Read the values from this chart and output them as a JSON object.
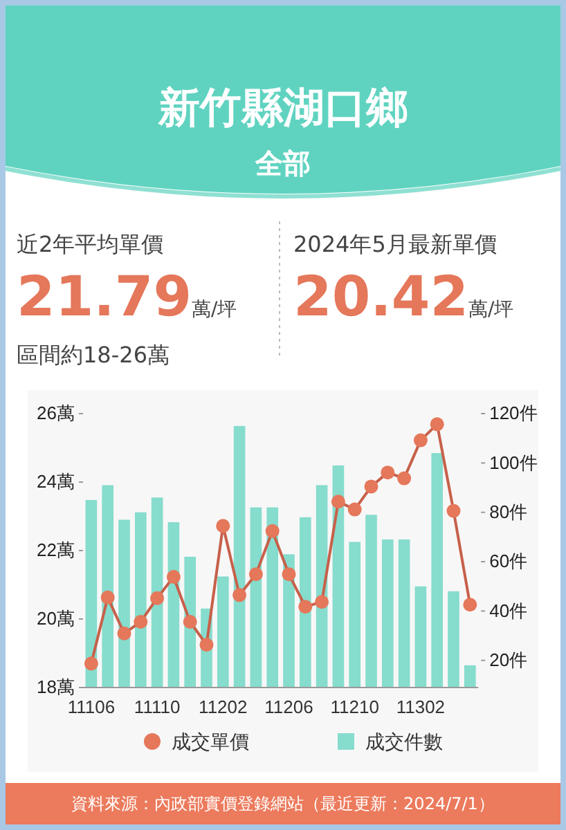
{
  "chart_data": {
    "type": "bar",
    "title": "新竹縣湖口鄉",
    "subtitle": "全部",
    "annotations": [
      "近2年平均單價",
      "21.79萬/坪",
      "區間約18-26萬",
      "2024年5月最新單價",
      "20.42萬/坪",
      "資料來源：內政部實價登錄網站（最近更新：2024/7/1）"
    ],
    "categories": [
      "11106",
      null,
      null,
      null,
      "11110",
      null,
      null,
      null,
      "11202",
      null,
      null,
      null,
      "11206",
      null,
      null,
      null,
      "11210",
      null,
      null,
      null,
      "11302",
      null,
      null,
      null
    ],
    "series": [
      {
        "name": "成交單價",
        "type": "line",
        "color": "#e5775a",
        "marker": "circle",
        "values": [
          18.7,
          20.63,
          19.58,
          19.92,
          20.61,
          21.23,
          19.92,
          19.25,
          22.72,
          20.7,
          21.31,
          22.57,
          21.31,
          20.36,
          20.5,
          23.43,
          23.2,
          23.87,
          24.28,
          24.11,
          25.22,
          25.69,
          23.16,
          20.42
        ]
      },
      {
        "name": "成交件數",
        "axis": "y2",
        "color": "#86dccd",
        "values": [
          85,
          91,
          77,
          80,
          86,
          76,
          62,
          41,
          54,
          115,
          82,
          82,
          63,
          78,
          91,
          99,
          68,
          79,
          69,
          69,
          50,
          104,
          48,
          18
        ]
      }
    ],
    "ylim": [
      18,
      26
    ],
    "yticks": [
      {
        "value": 18,
        "label": "18萬"
      },
      {
        "value": 20,
        "label": "20萬"
      },
      {
        "value": 22,
        "label": "22萬"
      },
      {
        "value": 24,
        "label": "24萬"
      },
      {
        "value": 26,
        "label": "26萬"
      }
    ],
    "y2lim": [
      9,
      120
    ],
    "y2ticks": [
      {
        "value": 20,
        "label": "20件"
      },
      {
        "value": 40,
        "label": "40件"
      },
      {
        "value": 60,
        "label": "60件"
      },
      {
        "value": 80,
        "label": "80件"
      },
      {
        "value": 100,
        "label": "100件"
      },
      {
        "value": 120,
        "label": "120件"
      }
    ],
    "legend": "bottom",
    "grid": false
  }
}
